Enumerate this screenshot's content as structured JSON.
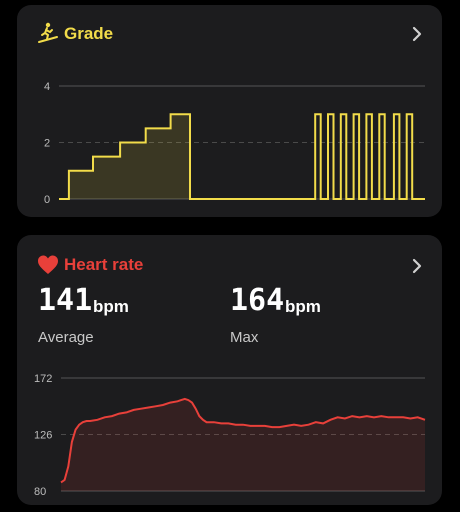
{
  "grade": {
    "title": "Grade",
    "icon": "treadmill-incline-icon",
    "color": "#f2dc4a",
    "chart_data": {
      "type": "line",
      "ylabel": "",
      "yticks": [
        0,
        2,
        4
      ],
      "ylim": [
        0,
        4
      ],
      "xlim": [
        0,
        100
      ],
      "grid": "solid at 0 and 4, dashed at 2",
      "x": [
        0,
        2.7,
        2.7,
        9.3,
        9.3,
        16.7,
        16.7,
        23.7,
        23.7,
        30.5,
        30.5,
        34.5,
        34.5,
        35.8,
        35.8,
        70.0,
        70.0,
        71.5,
        71.5,
        73.5,
        73.5,
        75.0,
        75.0,
        77.0,
        77.0,
        78.5,
        78.5,
        80.5,
        80.5,
        82.0,
        82.0,
        84.0,
        84.0,
        85.5,
        85.5,
        87.5,
        87.5,
        89.0,
        89.0,
        91.5,
        91.5,
        93.0,
        93.0,
        95.0,
        95.0,
        96.5,
        96.5,
        100
      ],
      "values": [
        0,
        0,
        1,
        1,
        1.5,
        1.5,
        2,
        2,
        2.5,
        2.5,
        3,
        3,
        3,
        3,
        0,
        0,
        3,
        3,
        0,
        0,
        3,
        3,
        0,
        0,
        3,
        3,
        0,
        0,
        3,
        3,
        0,
        0,
        3,
        3,
        0,
        0,
        3,
        3,
        0,
        0,
        3,
        3,
        0,
        0,
        3,
        3,
        0,
        0
      ]
    }
  },
  "heart_rate": {
    "title": "Heart rate",
    "icon": "heart-icon",
    "color": "#e8403a",
    "average": {
      "value": "141",
      "unit": "bpm",
      "label": "Average"
    },
    "max": {
      "value": "164",
      "unit": "bpm",
      "label": "Max"
    },
    "chart_data": {
      "type": "area",
      "ylabel": "",
      "yticks": [
        80,
        126,
        172
      ],
      "ylim": [
        80,
        172
      ],
      "xlim": [
        0,
        100
      ],
      "grid": "solid at 80 and 172, dashed at 126",
      "x": [
        0,
        1,
        2,
        3,
        4,
        5,
        6,
        7,
        8,
        10,
        12,
        14,
        16,
        18,
        20,
        22,
        24,
        26,
        28,
        30,
        32,
        33,
        34,
        35,
        36,
        37,
        38,
        39,
        40,
        42,
        44,
        46,
        48,
        50,
        52,
        54,
        56,
        58,
        60,
        62,
        64,
        66,
        68,
        70,
        72,
        74,
        76,
        78,
        80,
        82,
        84,
        86,
        88,
        90,
        92,
        94,
        96,
        98,
        100
      ],
      "values": [
        87,
        89,
        100,
        120,
        130,
        134,
        136,
        137,
        137,
        138,
        140,
        141,
        143,
        144,
        146,
        147,
        148,
        149,
        150,
        152,
        153,
        154,
        155,
        154,
        152,
        147,
        141,
        138,
        136,
        136,
        135,
        135,
        134,
        134,
        133,
        133,
        133,
        132,
        132,
        133,
        134,
        133,
        134,
        136,
        135,
        138,
        140,
        139,
        141,
        140,
        141,
        140,
        141,
        140,
        140,
        140,
        139,
        140,
        138
      ]
    }
  }
}
